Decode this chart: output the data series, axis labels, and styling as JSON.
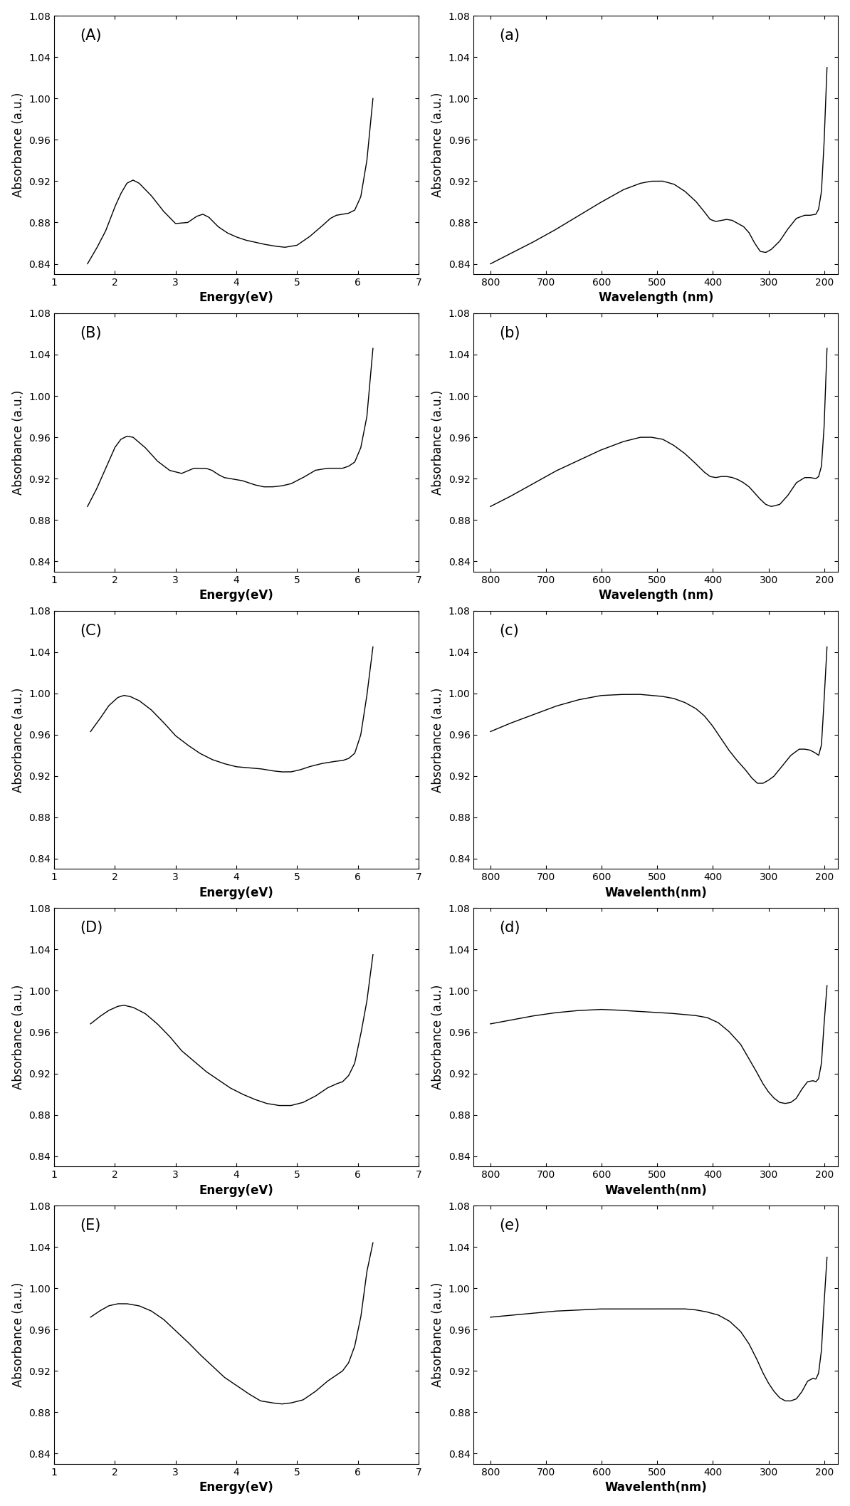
{
  "panels": [
    {
      "label": "(A)",
      "xlabel": "Energy(eV)",
      "ylabel": "Absorbance (a.u.)",
      "xlim": [
        1,
        7
      ],
      "ylim": [
        0.83,
        1.08
      ],
      "yticks": [
        0.84,
        0.88,
        0.92,
        0.96,
        1.0,
        1.04,
        1.08
      ],
      "xticks": [
        1,
        2,
        3,
        4,
        5,
        6,
        7
      ],
      "xreverse": false,
      "curve_x": [
        1.55,
        1.7,
        1.85,
        2.0,
        2.1,
        2.2,
        2.3,
        2.4,
        2.6,
        2.8,
        3.0,
        3.2,
        3.35,
        3.45,
        3.55,
        3.7,
        3.85,
        4.0,
        4.15,
        4.3,
        4.45,
        4.55,
        4.65,
        4.8,
        5.0,
        5.2,
        5.4,
        5.55,
        5.65,
        5.75,
        5.85,
        5.95,
        6.05,
        6.15,
        6.25
      ],
      "curve_y": [
        0.84,
        0.855,
        0.872,
        0.895,
        0.908,
        0.918,
        0.921,
        0.918,
        0.906,
        0.891,
        0.879,
        0.88,
        0.886,
        0.888,
        0.885,
        0.876,
        0.87,
        0.866,
        0.863,
        0.861,
        0.859,
        0.858,
        0.857,
        0.856,
        0.858,
        0.866,
        0.876,
        0.884,
        0.887,
        0.888,
        0.889,
        0.892,
        0.905,
        0.94,
        1.0
      ]
    },
    {
      "label": "(a)",
      "xlabel": "Wavelength (nm)",
      "ylabel": "Absorbance (a.u.)",
      "xlim": [
        830,
        175
      ],
      "ylim": [
        0.83,
        1.08
      ],
      "yticks": [
        0.84,
        0.88,
        0.92,
        0.96,
        1.0,
        1.04,
        1.08
      ],
      "xticks": [
        800,
        700,
        600,
        500,
        400,
        300,
        200
      ],
      "xreverse": true,
      "curve_x": [
        800,
        760,
        720,
        680,
        640,
        600,
        560,
        530,
        510,
        490,
        470,
        450,
        430,
        415,
        405,
        395,
        385,
        375,
        365,
        355,
        345,
        335,
        325,
        315,
        305,
        295,
        280,
        265,
        250,
        235,
        225,
        215,
        210,
        205,
        200,
        195
      ],
      "curve_y": [
        0.84,
        0.851,
        0.862,
        0.874,
        0.887,
        0.9,
        0.912,
        0.918,
        0.92,
        0.92,
        0.917,
        0.91,
        0.9,
        0.89,
        0.883,
        0.881,
        0.882,
        0.883,
        0.882,
        0.879,
        0.876,
        0.87,
        0.86,
        0.852,
        0.851,
        0.854,
        0.862,
        0.874,
        0.884,
        0.887,
        0.887,
        0.888,
        0.893,
        0.91,
        0.96,
        1.03
      ]
    },
    {
      "label": "(B)",
      "xlabel": "Energy(eV)",
      "ylabel": "Absorbance (a.u.)",
      "xlim": [
        1,
        7
      ],
      "ylim": [
        0.83,
        1.08
      ],
      "yticks": [
        0.84,
        0.88,
        0.92,
        0.96,
        1.0,
        1.04,
        1.08
      ],
      "xticks": [
        1,
        2,
        3,
        4,
        5,
        6,
        7
      ],
      "xreverse": false,
      "curve_x": [
        1.55,
        1.7,
        1.85,
        2.0,
        2.1,
        2.2,
        2.3,
        2.5,
        2.7,
        2.9,
        3.1,
        3.3,
        3.5,
        3.6,
        3.7,
        3.8,
        3.9,
        4.0,
        4.1,
        4.2,
        4.3,
        4.45,
        4.6,
        4.75,
        4.9,
        5.1,
        5.3,
        5.5,
        5.65,
        5.75,
        5.85,
        5.95,
        6.05,
        6.15,
        6.25
      ],
      "curve_y": [
        0.893,
        0.91,
        0.93,
        0.95,
        0.958,
        0.961,
        0.96,
        0.95,
        0.937,
        0.928,
        0.925,
        0.93,
        0.93,
        0.928,
        0.924,
        0.921,
        0.92,
        0.919,
        0.918,
        0.916,
        0.914,
        0.912,
        0.912,
        0.913,
        0.915,
        0.921,
        0.928,
        0.93,
        0.93,
        0.93,
        0.932,
        0.936,
        0.95,
        0.98,
        1.046
      ]
    },
    {
      "label": "(b)",
      "xlabel": "Wavelength (nm)",
      "ylabel": "Absorbance (a.u.)",
      "xlim": [
        830,
        175
      ],
      "ylim": [
        0.83,
        1.08
      ],
      "yticks": [
        0.84,
        0.88,
        0.92,
        0.96,
        1.0,
        1.04,
        1.08
      ],
      "xticks": [
        800,
        700,
        600,
        500,
        400,
        300,
        200
      ],
      "xreverse": true,
      "curve_x": [
        800,
        760,
        720,
        680,
        640,
        600,
        560,
        530,
        510,
        490,
        470,
        450,
        430,
        415,
        405,
        395,
        385,
        375,
        365,
        355,
        345,
        335,
        325,
        315,
        305,
        295,
        280,
        265,
        250,
        235,
        225,
        215,
        210,
        205,
        200,
        195
      ],
      "curve_y": [
        0.893,
        0.904,
        0.916,
        0.928,
        0.938,
        0.948,
        0.956,
        0.96,
        0.96,
        0.958,
        0.952,
        0.944,
        0.934,
        0.926,
        0.922,
        0.921,
        0.922,
        0.922,
        0.921,
        0.919,
        0.916,
        0.912,
        0.906,
        0.9,
        0.895,
        0.893,
        0.895,
        0.904,
        0.916,
        0.921,
        0.921,
        0.92,
        0.922,
        0.932,
        0.972,
        1.046
      ]
    },
    {
      "label": "(C)",
      "xlabel": "Energy(eV)",
      "ylabel": "Absorbance (a.u.)",
      "xlim": [
        1,
        7
      ],
      "ylim": [
        0.83,
        1.08
      ],
      "yticks": [
        0.84,
        0.88,
        0.92,
        0.96,
        1.0,
        1.04,
        1.08
      ],
      "xticks": [
        1,
        2,
        3,
        4,
        5,
        6,
        7
      ],
      "xreverse": false,
      "curve_x": [
        1.6,
        1.75,
        1.9,
        2.05,
        2.15,
        2.25,
        2.4,
        2.6,
        2.8,
        3.0,
        3.2,
        3.4,
        3.6,
        3.8,
        4.0,
        4.2,
        4.4,
        4.6,
        4.75,
        4.9,
        5.05,
        5.2,
        5.4,
        5.6,
        5.75,
        5.85,
        5.95,
        6.05,
        6.15,
        6.25
      ],
      "curve_y": [
        0.963,
        0.975,
        0.988,
        0.996,
        0.998,
        0.997,
        0.993,
        0.984,
        0.972,
        0.959,
        0.95,
        0.942,
        0.936,
        0.932,
        0.929,
        0.928,
        0.927,
        0.925,
        0.924,
        0.924,
        0.926,
        0.929,
        0.932,
        0.934,
        0.935,
        0.937,
        0.942,
        0.96,
        0.998,
        1.045
      ]
    },
    {
      "label": "(c)",
      "xlabel": "Wavelenth(nm)",
      "ylabel": "Absorbance (a.u.)",
      "xlim": [
        830,
        175
      ],
      "ylim": [
        0.83,
        1.08
      ],
      "yticks": [
        0.84,
        0.88,
        0.92,
        0.96,
        1.0,
        1.04,
        1.08
      ],
      "xticks": [
        800,
        700,
        600,
        500,
        400,
        300,
        200
      ],
      "xreverse": true,
      "curve_x": [
        800,
        760,
        720,
        680,
        640,
        600,
        560,
        530,
        510,
        490,
        470,
        450,
        430,
        415,
        400,
        385,
        370,
        355,
        340,
        330,
        320,
        310,
        300,
        290,
        275,
        260,
        245,
        235,
        225,
        215,
        210,
        205,
        200,
        195
      ],
      "curve_y": [
        0.963,
        0.972,
        0.98,
        0.988,
        0.994,
        0.998,
        0.999,
        0.999,
        0.998,
        0.997,
        0.995,
        0.991,
        0.985,
        0.978,
        0.968,
        0.956,
        0.944,
        0.934,
        0.925,
        0.918,
        0.913,
        0.913,
        0.916,
        0.92,
        0.93,
        0.94,
        0.946,
        0.946,
        0.945,
        0.942,
        0.94,
        0.95,
        0.995,
        1.045
      ]
    },
    {
      "label": "(D)",
      "xlabel": "Energy(eV)",
      "ylabel": "Absorbance (a.u.)",
      "xlim": [
        1,
        7
      ],
      "ylim": [
        0.83,
        1.08
      ],
      "yticks": [
        0.84,
        0.88,
        0.92,
        0.96,
        1.0,
        1.04,
        1.08
      ],
      "xticks": [
        1,
        2,
        3,
        4,
        5,
        6,
        7
      ],
      "xreverse": false,
      "curve_x": [
        1.6,
        1.75,
        1.9,
        2.05,
        2.15,
        2.3,
        2.5,
        2.7,
        2.9,
        3.1,
        3.3,
        3.5,
        3.7,
        3.9,
        4.1,
        4.3,
        4.5,
        4.7,
        4.9,
        5.1,
        5.3,
        5.5,
        5.65,
        5.75,
        5.85,
        5.95,
        6.05,
        6.15,
        6.25
      ],
      "curve_y": [
        0.968,
        0.975,
        0.981,
        0.985,
        0.986,
        0.984,
        0.978,
        0.968,
        0.956,
        0.942,
        0.932,
        0.922,
        0.914,
        0.906,
        0.9,
        0.895,
        0.891,
        0.889,
        0.889,
        0.892,
        0.898,
        0.906,
        0.91,
        0.912,
        0.918,
        0.93,
        0.958,
        0.99,
        1.035
      ]
    },
    {
      "label": "(d)",
      "xlabel": "Wavelenth(nm)",
      "ylabel": "Absorbance (a.u.)",
      "xlim": [
        830,
        175
      ],
      "ylim": [
        0.83,
        1.08
      ],
      "yticks": [
        0.84,
        0.88,
        0.92,
        0.96,
        1.0,
        1.04,
        1.08
      ],
      "xticks": [
        800,
        700,
        600,
        500,
        400,
        300,
        200
      ],
      "xreverse": true,
      "curve_x": [
        800,
        760,
        720,
        680,
        640,
        600,
        560,
        530,
        500,
        470,
        450,
        430,
        410,
        390,
        370,
        350,
        335,
        320,
        310,
        300,
        290,
        280,
        270,
        260,
        250,
        240,
        230,
        220,
        215,
        210,
        205,
        200,
        195
      ],
      "curve_y": [
        0.968,
        0.972,
        0.976,
        0.979,
        0.981,
        0.982,
        0.981,
        0.98,
        0.979,
        0.978,
        0.977,
        0.976,
        0.974,
        0.969,
        0.96,
        0.948,
        0.934,
        0.92,
        0.91,
        0.902,
        0.896,
        0.892,
        0.891,
        0.892,
        0.896,
        0.905,
        0.912,
        0.913,
        0.912,
        0.915,
        0.93,
        0.97,
        1.005
      ]
    },
    {
      "label": "(E)",
      "xlabel": "Energy(eV)",
      "ylabel": "Absorbance (a.u.)",
      "xlim": [
        1,
        7
      ],
      "ylim": [
        0.83,
        1.08
      ],
      "yticks": [
        0.84,
        0.88,
        0.92,
        0.96,
        1.0,
        1.04,
        1.08
      ],
      "xticks": [
        1,
        2,
        3,
        4,
        5,
        6,
        7
      ],
      "xreverse": false,
      "curve_x": [
        1.6,
        1.75,
        1.9,
        2.05,
        2.2,
        2.4,
        2.6,
        2.8,
        3.0,
        3.2,
        3.4,
        3.6,
        3.8,
        4.0,
        4.2,
        4.4,
        4.6,
        4.75,
        4.9,
        5.1,
        5.3,
        5.5,
        5.65,
        5.75,
        5.85,
        5.95,
        6.05,
        6.15,
        6.25
      ],
      "curve_y": [
        0.972,
        0.978,
        0.983,
        0.985,
        0.985,
        0.983,
        0.978,
        0.97,
        0.959,
        0.948,
        0.936,
        0.925,
        0.914,
        0.906,
        0.898,
        0.891,
        0.889,
        0.888,
        0.889,
        0.892,
        0.9,
        0.91,
        0.916,
        0.92,
        0.928,
        0.944,
        0.972,
        1.016,
        1.044
      ]
    },
    {
      "label": "(e)",
      "xlabel": "Wavelenth(nm)",
      "ylabel": "Absorbance (a.u.)",
      "xlim": [
        830,
        175
      ],
      "ylim": [
        0.83,
        1.08
      ],
      "yticks": [
        0.84,
        0.88,
        0.92,
        0.96,
        1.0,
        1.04,
        1.08
      ],
      "xticks": [
        800,
        700,
        600,
        500,
        400,
        300,
        200
      ],
      "xreverse": true,
      "curve_x": [
        800,
        760,
        720,
        680,
        640,
        600,
        560,
        530,
        500,
        470,
        450,
        430,
        410,
        390,
        370,
        350,
        335,
        320,
        310,
        300,
        290,
        280,
        270,
        260,
        250,
        240,
        230,
        220,
        215,
        210,
        205,
        200,
        195
      ],
      "curve_y": [
        0.972,
        0.974,
        0.976,
        0.978,
        0.979,
        0.98,
        0.98,
        0.98,
        0.98,
        0.98,
        0.98,
        0.979,
        0.977,
        0.974,
        0.968,
        0.958,
        0.946,
        0.93,
        0.918,
        0.908,
        0.9,
        0.894,
        0.891,
        0.891,
        0.893,
        0.9,
        0.91,
        0.913,
        0.912,
        0.918,
        0.94,
        0.988,
        1.03
      ]
    }
  ],
  "line_color": "#000000",
  "line_width": 1.0,
  "label_fontsize": 12,
  "tick_fontsize": 10,
  "panel_label_fontsize": 15,
  "background_color": "#ffffff"
}
